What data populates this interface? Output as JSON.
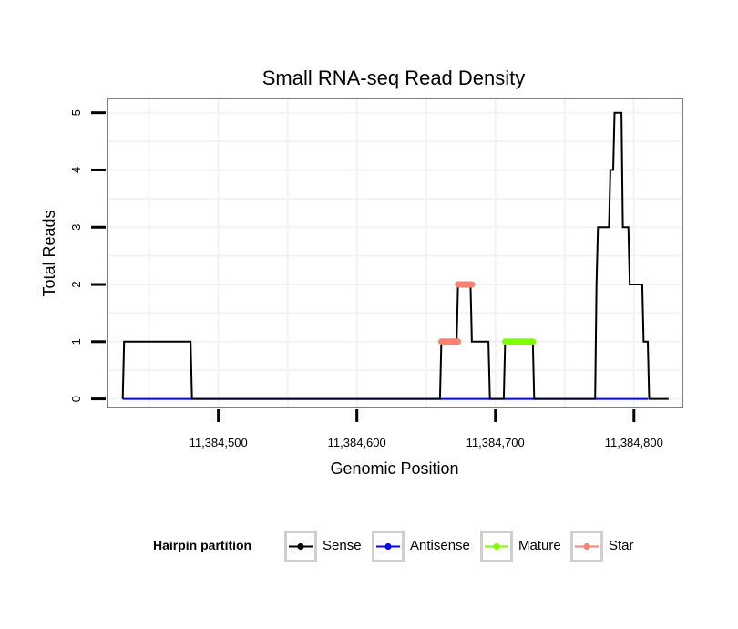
{
  "chart_data": {
    "type": "line",
    "title": "Small RNA-seq Read Density",
    "xlabel": "Genomic Position",
    "ylabel": "Total Reads",
    "xlim": [
      11384420,
      11384835
    ],
    "ylim": [
      -0.15,
      5.25
    ],
    "x_ticks": [
      11384500,
      11384600,
      11384700,
      11384800
    ],
    "x_tick_labels": [
      "11,384,500",
      "11,384,600",
      "11,384,700",
      "11,384,800"
    ],
    "y_ticks": [
      0,
      1,
      2,
      3,
      4,
      5
    ],
    "y_tick_labels": [
      "0",
      "1",
      "2",
      "3",
      "4",
      "5"
    ],
    "grid": true,
    "legend": {
      "title": "Hairpin partition",
      "placement": "bottom",
      "entries": [
        {
          "name": "Sense",
          "color": "#000000"
        },
        {
          "name": "Antisense",
          "color": "#0000ff"
        },
        {
          "name": "Mature",
          "color": "#7fff00"
        },
        {
          "name": "Star",
          "color": "#fa8072"
        }
      ]
    },
    "series": [
      {
        "name": "Sense",
        "color": "#000000",
        "x": [
          11384431,
          11384432,
          11384480,
          11384481,
          11384660,
          11384661,
          11384672,
          11384673,
          11384682,
          11384683,
          11384695,
          11384696,
          11384706,
          11384707,
          11384727,
          11384728,
          11384772,
          11384773,
          11384774,
          11384782,
          11384783,
          11384785,
          11384786,
          11384791,
          11384792,
          11384796,
          11384797,
          11384806,
          11384807,
          11384810,
          11384811,
          11384825
        ],
        "y": [
          0,
          1,
          1,
          0,
          0,
          1,
          1,
          2,
          2,
          1,
          1,
          0,
          0,
          1,
          1,
          0,
          0,
          2,
          3,
          3,
          4,
          4,
          5,
          5,
          3,
          3,
          2,
          2,
          1,
          1,
          0,
          0
        ]
      },
      {
        "name": "Antisense",
        "color": "#0000ff",
        "x": [
          11384431,
          11384480,
          11384727,
          11384772,
          11384810
        ],
        "y": [
          0,
          0,
          0,
          0,
          0
        ]
      },
      {
        "name": "Mature",
        "color": "#7fff00",
        "x": [
          11384707,
          11384727
        ],
        "y": [
          1,
          1
        ]
      },
      {
        "name": "Star",
        "color": "#fa8072",
        "segments": [
          {
            "x": [
              11384661,
              11384673
            ],
            "y": [
              1,
              1
            ]
          },
          {
            "x": [
              11384673,
              11384683
            ],
            "y": [
              2,
              2
            ]
          }
        ]
      }
    ]
  }
}
